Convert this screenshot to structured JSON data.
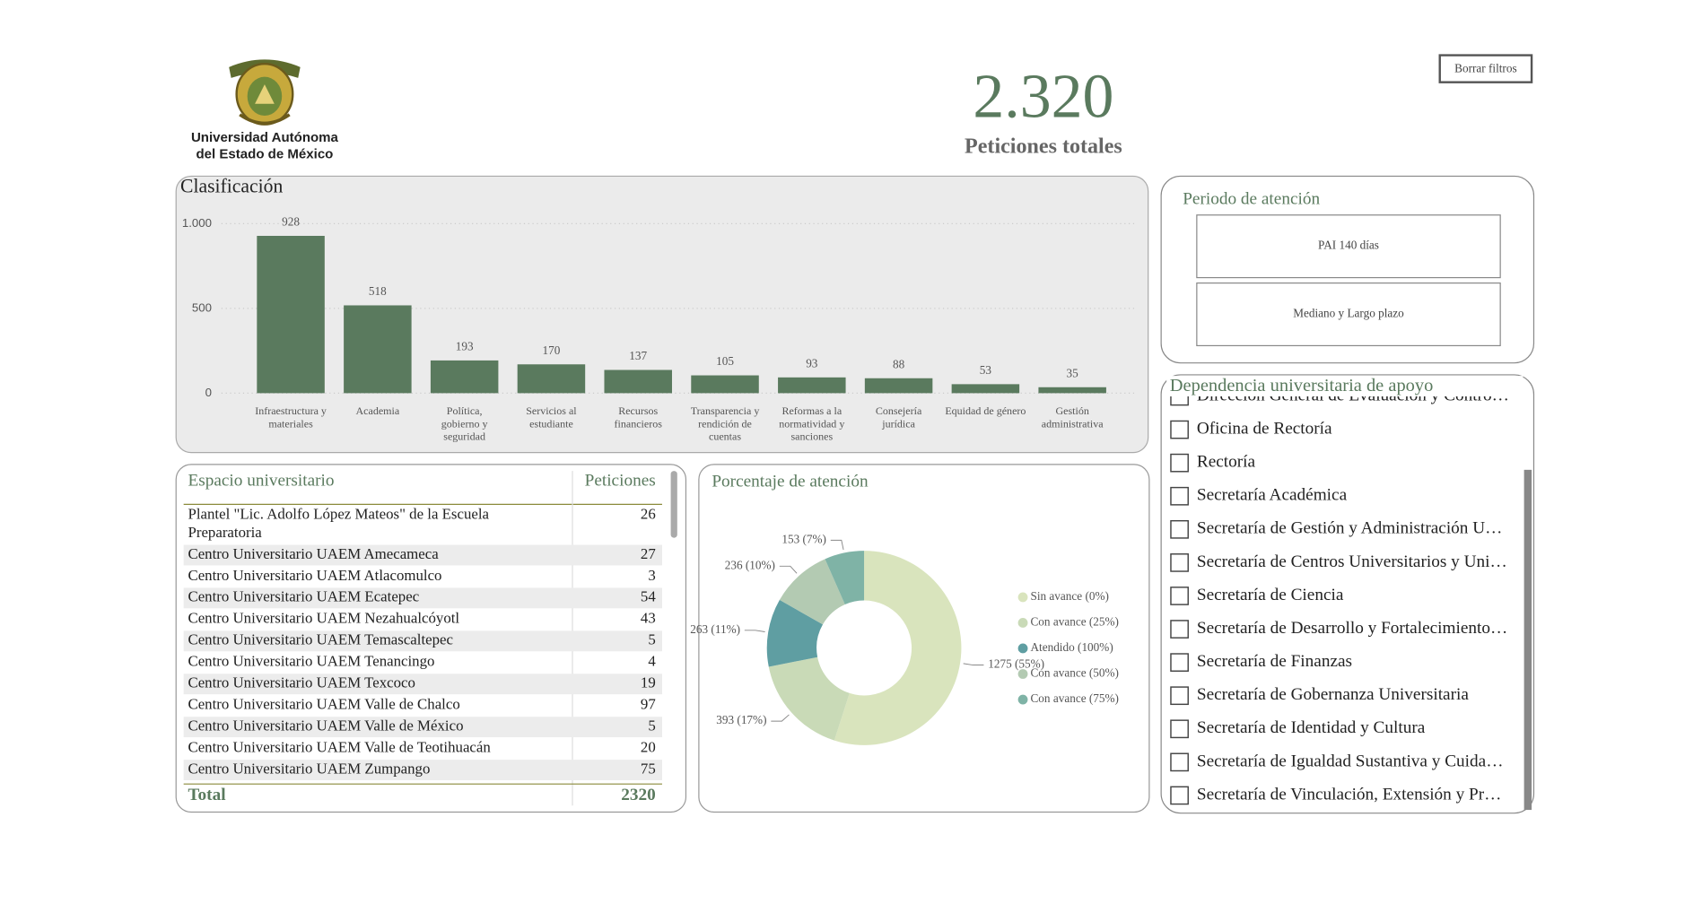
{
  "logo": {
    "lines": [
      "Universidad Autónoma",
      "del Estado de México"
    ]
  },
  "button": "Borrar filtros",
  "kpi": {
    "value": "2.320",
    "caption": "Peticiones totales"
  },
  "chart_data": [
    {
      "type": "bar",
      "title": "Clasificación",
      "categories": [
        "Infraestructura y materiales",
        "Academia",
        "Política, gobierno y seguridad",
        "Servicios al estudiante",
        "Recursos financieros",
        "Transparencia y rendición de cuentas",
        "Reformas a la normatividad y sanciones",
        "Consejería jurídica",
        "Equidad de género",
        "Gestión administrativa"
      ],
      "values": [
        928,
        518,
        193,
        170,
        137,
        105,
        93,
        88,
        53,
        35
      ],
      "color": "#5a7a5e",
      "ylim": [
        0,
        1000
      ],
      "yticks": [
        0,
        500,
        {
          "value": 1000,
          "label": "1.000"
        }
      ],
      "grid": true
    },
    {
      "type": "pie",
      "title": "Porcentaje de atención",
      "categories": [
        "Sin avance (0%)",
        "Con avance (25%)",
        "Atendido (100%)",
        "Con avance (50%)",
        "Con avance (75%)"
      ],
      "values": [
        1275,
        393,
        263,
        236,
        153
      ],
      "value_labels": [
        "1275 (55%)",
        "393 (17%)",
        "263 (11%)",
        "236 (10%)",
        "153 (7%)"
      ],
      "colors": [
        "#d9e4bd",
        "#c9dab7",
        "#5f9ea2",
        "#b3cab2",
        "#7fb3a6"
      ]
    }
  ],
  "table": {
    "columns": [
      "Espacio universitario",
      "Peticiones"
    ],
    "rows": [
      [
        "Plantel \"Lic. Adolfo López Mateos\" de la Escuela Preparatoria",
        26
      ],
      [
        "Centro Universitario UAEM Amecameca",
        27
      ],
      [
        "Centro Universitario UAEM Atlacomulco",
        3
      ],
      [
        "Centro Universitario UAEM Ecatepec",
        54
      ],
      [
        "Centro Universitario UAEM Nezahualcóyotl",
        43
      ],
      [
        "Centro Universitario UAEM Temascaltepec",
        5
      ],
      [
        "Centro Universitario UAEM Tenancingo",
        4
      ],
      [
        "Centro Universitario UAEM Texcoco",
        19
      ],
      [
        "Centro Universitario UAEM Valle de Chalco",
        97
      ],
      [
        "Centro Universitario UAEM Valle de México",
        5
      ],
      [
        "Centro Universitario UAEM Valle de Teotihuacán",
        20
      ],
      [
        "Centro Universitario UAEM Zumpango",
        75
      ]
    ],
    "total": [
      "Total",
      2320
    ]
  },
  "period": {
    "title": "Periodo de atención",
    "options": [
      "PAI 140 días",
      "Mediano y Largo plazo"
    ]
  },
  "dependencia": {
    "title": "Dependencia universitaria de apoyo",
    "items": [
      "Dirección General de Evaluación y Contro…",
      "Oficina de Rectoría",
      "Rectoría",
      "Secretaría Académica",
      "Secretaría de  Gestión y Administración U…",
      "Secretaría de Centros Universitarios y Uni…",
      "Secretaría de Ciencia",
      "Secretaría de Desarrollo y Fortalecimiento…",
      "Secretaría de Finanzas",
      "Secretaría de Gobernanza Universitaria",
      "Secretaría de Identidad y Cultura",
      "Secretaría de Igualdad Sustantiva y Cuida…",
      "Secretaría de Vinculación, Extensión y Pr…"
    ]
  }
}
